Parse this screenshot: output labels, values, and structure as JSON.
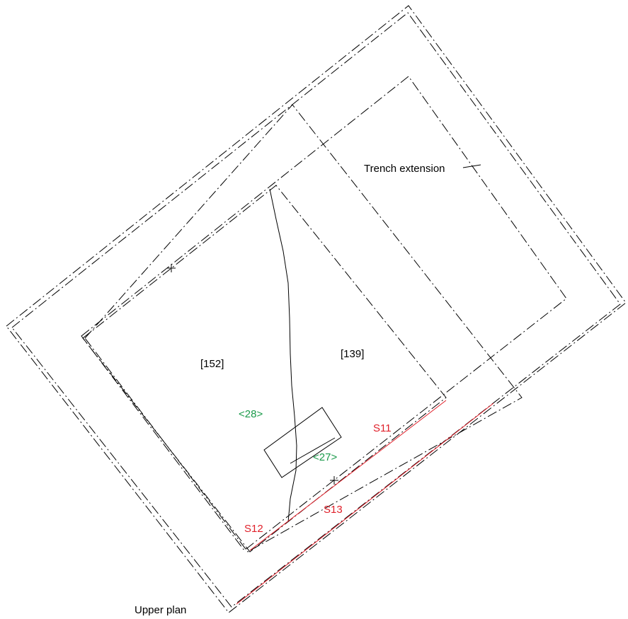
{
  "colors": {
    "line": "#000000",
    "section": "#e0202a",
    "small_find": "#1a9a4a",
    "context": "#000000"
  },
  "labels": {
    "trench_extension": "Trench extension",
    "upper_plan": "Upper plan",
    "context_152": "[152]",
    "context_139": "[139]",
    "small_find_28": "<28>",
    "small_find_27": "<27>",
    "section_s11": "S11",
    "section_s12": "S12",
    "section_s13": "S13"
  }
}
